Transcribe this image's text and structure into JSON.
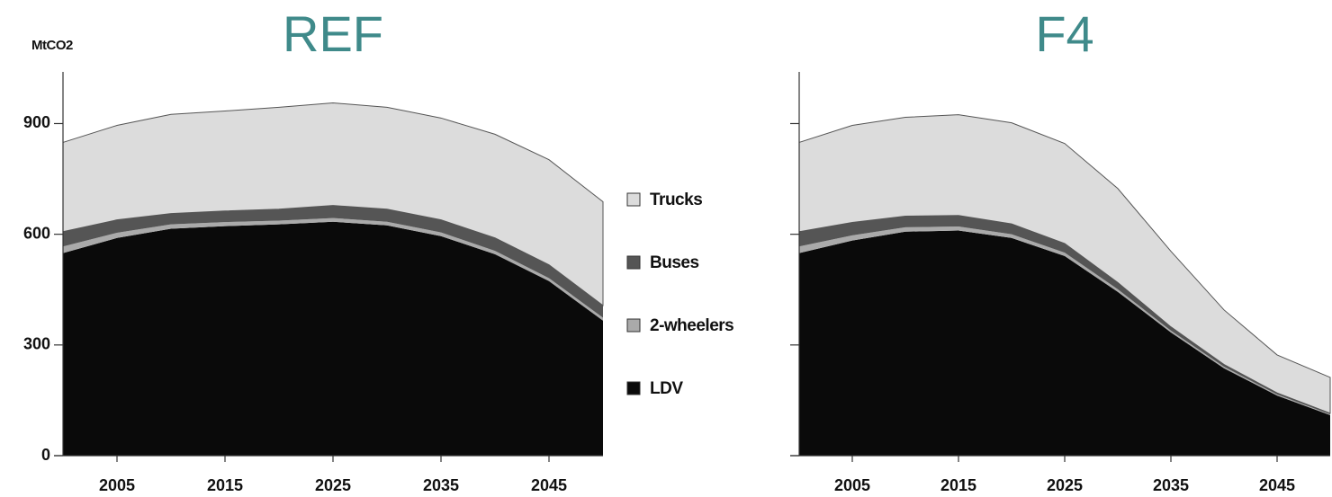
{
  "chart_data": [
    {
      "type": "area",
      "stacked": true,
      "title": "REF",
      "ylabel": "MtCO2",
      "x": [
        2000,
        2005,
        2010,
        2015,
        2020,
        2025,
        2030,
        2035,
        2040,
        2045,
        2050
      ],
      "xlim": [
        2000,
        2050
      ],
      "xticks": [
        2005,
        2015,
        2025,
        2035,
        2045
      ],
      "ylim": [
        0,
        1040
      ],
      "yticks": [
        0,
        300,
        600,
        900
      ],
      "show_ytick_labels": true,
      "series": [
        {
          "name": "LDV",
          "color": "#0a0a0a",
          "values": [
            549,
            590,
            615,
            622,
            627,
            634,
            624,
            595,
            546,
            473,
            366
          ]
        },
        {
          "name": "2-wheelers",
          "color": "#aaaaaa",
          "values": [
            18,
            14,
            12,
            11,
            10,
            10,
            10,
            10,
            9,
            8,
            8
          ]
        },
        {
          "name": "Buses",
          "color": "#555555",
          "values": [
            40,
            35,
            29,
            30,
            31,
            34,
            34,
            34,
            35,
            36,
            33
          ]
        },
        {
          "name": "Trucks",
          "color": "#dcdcdc",
          "values": [
            242,
            256,
            269,
            271,
            276,
            278,
            276,
            276,
            281,
            285,
            281
          ]
        }
      ]
    },
    {
      "type": "area",
      "stacked": true,
      "title": "F4",
      "x": [
        2000,
        2005,
        2010,
        2015,
        2020,
        2025,
        2030,
        2035,
        2040,
        2045,
        2050
      ],
      "xlim": [
        2000,
        2050
      ],
      "xticks": [
        2005,
        2015,
        2025,
        2035,
        2045
      ],
      "ylim": [
        0,
        1040
      ],
      "yticks": [
        0,
        300,
        600,
        900
      ],
      "show_ytick_labels": false,
      "series": [
        {
          "name": "LDV",
          "color": "#0a0a0a",
          "values": [
            549,
            583,
            607,
            610,
            590,
            541,
            444,
            334,
            237,
            163,
            110
          ]
        },
        {
          "name": "2-wheelers",
          "color": "#aaaaaa",
          "values": [
            18,
            14,
            12,
            11,
            10,
            9,
            7,
            5,
            4,
            3,
            2
          ]
        },
        {
          "name": "Buses",
          "color": "#555555",
          "values": [
            40,
            35,
            30,
            30,
            28,
            25,
            18,
            10,
            6,
            4,
            3
          ]
        },
        {
          "name": "Trucks",
          "color": "#dcdcdc",
          "values": [
            242,
            263,
            268,
            273,
            274,
            271,
            255,
            205,
            148,
            103,
            97
          ]
        }
      ]
    }
  ]
}
